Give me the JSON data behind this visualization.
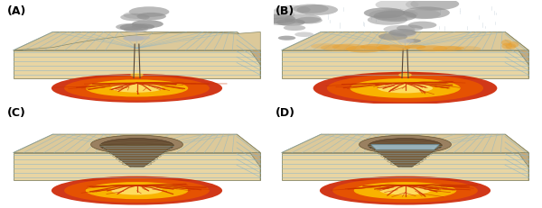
{
  "panels": [
    "(A)",
    "(B)",
    "(C)",
    "(D)"
  ],
  "background_color": "#ffffff",
  "label_fontsize": 9,
  "top_color": "#dcc99a",
  "front_color": "#e8d5a3",
  "right_color": "#c8aa78",
  "strata_color": "#8ab4c8",
  "magma_orange": "#e85500",
  "magma_yellow": "#ffcc00",
  "magma_red": "#cc2200",
  "lava_vein_color": "#cc3300",
  "smoke_dark": "#909090",
  "smoke_light": "#b8b8b8",
  "pyro_color": "#e8a030",
  "water_color": "#a8ccdc",
  "water_dark": "#6090a8",
  "crater_wall": "#9a8060",
  "crater_dark": "#6a5035"
}
